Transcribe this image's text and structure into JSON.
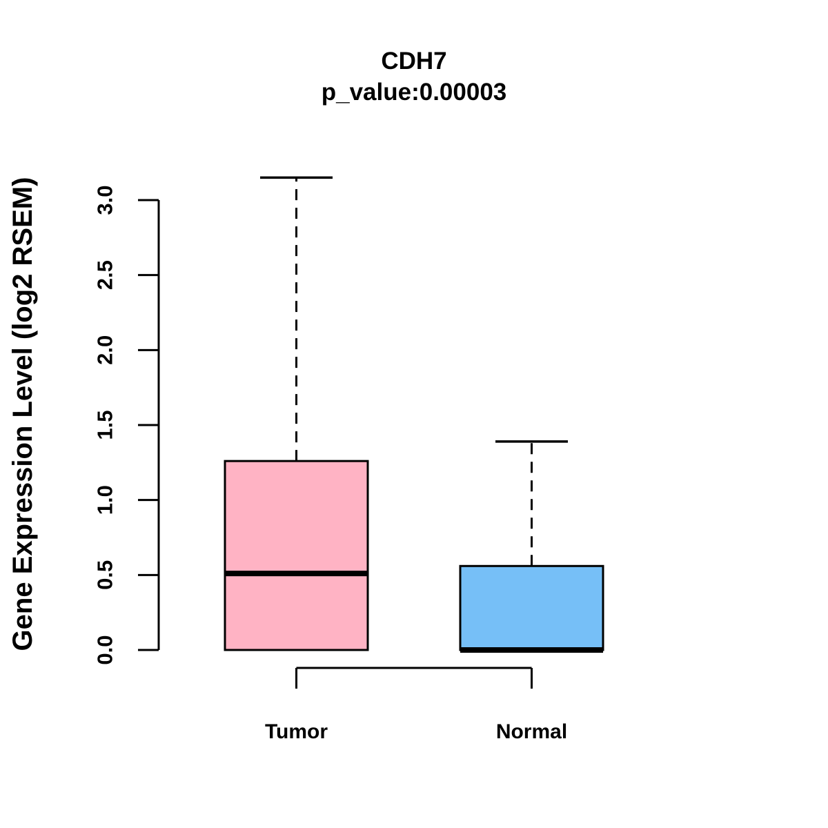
{
  "figure": {
    "title": "CDH7",
    "subtitle": "p_value:0.00003",
    "ylabel": "Gene Expression Level (log2 RSEM)"
  },
  "chart_data": {
    "type": "boxplot",
    "title": "CDH7",
    "subtitle": "p_value:0.00003",
    "xlabel": "",
    "ylabel": "Gene Expression Level (log2 RSEM)",
    "ylim": [
      0.0,
      3.0
    ],
    "yticks": [
      0.0,
      0.5,
      1.0,
      1.5,
      2.0,
      2.5,
      3.0
    ],
    "ytick_labels": [
      "0.0",
      "0.5",
      "1.0",
      "1.5",
      "2.0",
      "2.5",
      "3.0"
    ],
    "categories": [
      "Tumor",
      "Normal"
    ],
    "series": [
      {
        "name": "Tumor",
        "color": "#FFB3C4",
        "lower_whisker": 0.0,
        "q1": 0.0,
        "median": 0.51,
        "q3": 1.26,
        "upper_whisker": 3.15
      },
      {
        "name": "Normal",
        "color": "#76BFF7",
        "lower_whisker": 0.0,
        "q1": 0.0,
        "median": 0.0,
        "q3": 0.56,
        "upper_whisker": 1.39
      }
    ],
    "comparison_bracket": {
      "from": "Tumor",
      "to": "Normal"
    },
    "layout_hints": {
      "grid": "off",
      "legend": "none",
      "tick_label_rotation": 90,
      "box_border_color": "#000000",
      "background": "#FFFFFF"
    }
  }
}
